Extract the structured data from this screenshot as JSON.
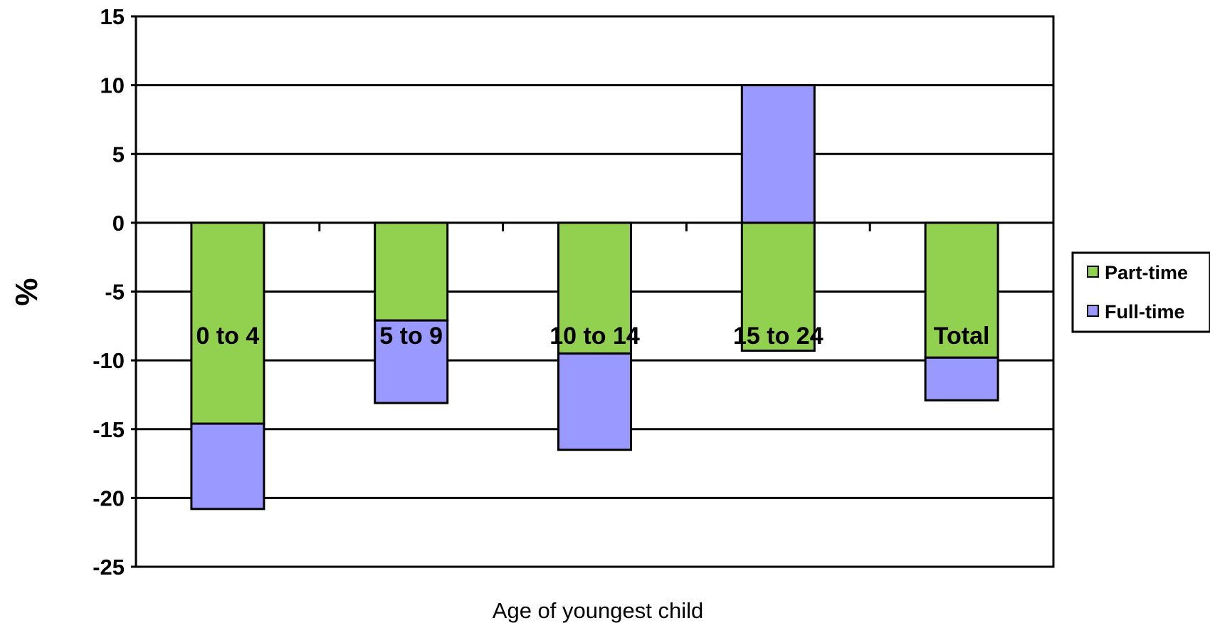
{
  "chart_data": {
    "type": "bar",
    "stacked": true,
    "title": "",
    "xlabel": "Age of youngest child",
    "ylabel": "%",
    "ylim": [
      -25,
      15
    ],
    "yticks": [
      "15",
      "10",
      "5",
      "0",
      "-5",
      "-10",
      "-15",
      "-20",
      "-25"
    ],
    "categories": [
      "0 to 4",
      "5 to 9",
      "10 to 14",
      "15 to 24",
      "Total"
    ],
    "series": [
      {
        "name": "Part-time",
        "color": "#92D050",
        "values": [
          -14.6,
          -7.1,
          -9.5,
          -9.3,
          -9.8
        ]
      },
      {
        "name": "Full-time",
        "color": "#9999FF",
        "values": [
          -6.2,
          -6.0,
          -7.0,
          10.0,
          -3.1
        ]
      }
    ],
    "grid": true,
    "legend": "right"
  }
}
